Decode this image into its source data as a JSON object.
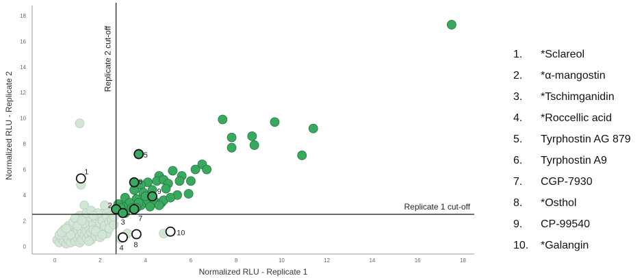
{
  "chart_data": {
    "type": "scatter",
    "xlabel": "Normalized RLU -  Replicate 1",
    "ylabel": "Normalized RLU - Replicate 2",
    "xlim": [
      -1,
      18.5
    ],
    "ylim": [
      -0.6,
      18.8
    ],
    "xticks": [
      0,
      2,
      4,
      6,
      8,
      10,
      12,
      14,
      16,
      18
    ],
    "yticks": [
      0,
      2,
      4,
      6,
      8,
      10,
      12,
      14,
      16,
      18
    ],
    "cutoff_x": 2.7,
    "cutoff_y": 2.5,
    "cutoff_x_label": "Replicate 2 cut-off",
    "cutoff_y_label": "Replicate 1 cut-off",
    "grid": false,
    "colors": {
      "hit": "#3aa85e",
      "hit_edge": "#1f7a3f",
      "inactive": "#d2e6d6",
      "inactive_edge": "#b6cfbb",
      "highlight_edge": "#111111"
    },
    "series": [
      {
        "values": [
          [
            1.1,
            9.6
          ],
          [
            1.15,
            4.8
          ],
          [
            1.3,
            3.2
          ],
          [
            0.1,
            0.5
          ],
          [
            0.2,
            0.3
          ],
          [
            0.3,
            0.6
          ],
          [
            0.4,
            0.4
          ],
          [
            0.5,
            0.8
          ],
          [
            0.5,
            0.2
          ],
          [
            0.6,
            1.0
          ],
          [
            0.6,
            0.5
          ],
          [
            0.7,
            0.3
          ],
          [
            0.7,
            1.2
          ],
          [
            0.8,
            0.7
          ],
          [
            0.8,
            1.5
          ],
          [
            0.9,
            0.4
          ],
          [
            0.9,
            1.0
          ],
          [
            1.0,
            0.6
          ],
          [
            1.0,
            1.3
          ],
          [
            1.0,
            1.9
          ],
          [
            1.1,
            0.8
          ],
          [
            1.1,
            0.3
          ],
          [
            1.2,
            1.1
          ],
          [
            1.2,
            1.6
          ],
          [
            1.2,
            0.5
          ],
          [
            1.3,
            0.9
          ],
          [
            1.3,
            2.1
          ],
          [
            1.4,
            1.2
          ],
          [
            1.4,
            0.6
          ],
          [
            1.5,
            1.5
          ],
          [
            1.5,
            0.9
          ],
          [
            1.5,
            2.0
          ],
          [
            1.6,
            1.1
          ],
          [
            1.6,
            0.5
          ],
          [
            1.7,
            1.7
          ],
          [
            1.7,
            1.3
          ],
          [
            1.8,
            0.8
          ],
          [
            1.8,
            2.2
          ],
          [
            1.9,
            1.4
          ],
          [
            1.9,
            1.0
          ],
          [
            2.0,
            1.8
          ],
          [
            2.0,
            2.5
          ],
          [
            2.0,
            0.7
          ],
          [
            2.1,
            1.2
          ],
          [
            2.1,
            2.0
          ],
          [
            2.2,
            1.6
          ],
          [
            2.2,
            2.7
          ],
          [
            2.3,
            1.0
          ],
          [
            2.3,
            2.3
          ],
          [
            2.4,
            1.9
          ],
          [
            2.4,
            1.4
          ],
          [
            2.5,
            2.1
          ],
          [
            2.5,
            2.6
          ],
          [
            2.6,
            1.7
          ],
          [
            0.2,
            0.9
          ],
          [
            0.4,
            1.3
          ],
          [
            0.6,
            1.6
          ],
          [
            0.8,
            1.9
          ],
          [
            1.1,
            2.4
          ],
          [
            1.4,
            2.6
          ],
          [
            1.6,
            2.8
          ],
          [
            0.9,
            2.2
          ],
          [
            0.3,
            1.1
          ],
          [
            1.3,
            1.8
          ],
          [
            0.7,
            0.9
          ],
          [
            1.8,
            1.2
          ],
          [
            2.1,
            0.9
          ],
          [
            1.5,
            0.4
          ],
          [
            0.5,
            1.4
          ],
          [
            1.9,
            2.6
          ],
          [
            2.3,
            3.0
          ],
          [
            1.7,
            2.4
          ],
          [
            2.6,
            2.3
          ],
          [
            1.0,
            1.6
          ],
          [
            1.2,
            2.0
          ],
          [
            3.2,
            1.0
          ],
          [
            4.8,
            1.0
          ],
          [
            2.9,
            0.6
          ],
          [
            2.6,
            2.9
          ],
          [
            2.2,
            3.2
          ]
        ]
      },
      {
        "values": [
          [
            17.5,
            17.3
          ],
          [
            7.4,
            9.9
          ],
          [
            9.7,
            9.7
          ],
          [
            11.4,
            9.2
          ],
          [
            8.7,
            8.6
          ],
          [
            7.8,
            8.5
          ],
          [
            8.8,
            7.9
          ],
          [
            7.8,
            7.7
          ],
          [
            10.9,
            7.1
          ],
          [
            6.5,
            6.4
          ],
          [
            6.2,
            6.0
          ],
          [
            6.7,
            6.0
          ],
          [
            5.2,
            5.9
          ],
          [
            4.6,
            5.5
          ],
          [
            5.6,
            5.5
          ],
          [
            4.1,
            5.0
          ],
          [
            4.5,
            5.1
          ],
          [
            4.8,
            5.2
          ],
          [
            5.0,
            4.9
          ],
          [
            5.5,
            5.1
          ],
          [
            6.0,
            5.1
          ],
          [
            3.8,
            4.8
          ],
          [
            4.9,
            4.5
          ],
          [
            3.5,
            4.4
          ],
          [
            4.3,
            4.4
          ],
          [
            3.9,
            4.2
          ],
          [
            5.9,
            4.1
          ],
          [
            5.4,
            4.0
          ],
          [
            3.1,
            3.8
          ],
          [
            3.6,
            3.7
          ],
          [
            4.0,
            3.6
          ],
          [
            3.3,
            3.4
          ],
          [
            4.4,
            3.5
          ],
          [
            4.7,
            3.4
          ],
          [
            3.0,
            3.1
          ],
          [
            3.4,
            3.0
          ],
          [
            3.8,
            3.2
          ],
          [
            4.2,
            3.1
          ],
          [
            2.8,
            3.3
          ],
          [
            3.1,
            2.6
          ],
          [
            3.7,
            3.4
          ],
          [
            4.8,
            3.6
          ],
          [
            5.1,
            3.8
          ],
          [
            4.6,
            3.2
          ],
          [
            3.6,
            3.0
          ],
          [
            4.0,
            3.9
          ],
          [
            2.9,
            3.0
          ]
        ]
      }
    ],
    "highlighted": [
      {
        "label": "1",
        "x": 1.15,
        "y": 5.3,
        "filled": false
      },
      {
        "label": "2",
        "x": 2.7,
        "y": 2.9,
        "filled": true
      },
      {
        "label": "3",
        "x": 3.0,
        "y": 2.6,
        "filled": true
      },
      {
        "label": "4",
        "x": 3.0,
        "y": 0.7,
        "filled": false
      },
      {
        "label": "5",
        "x": 3.7,
        "y": 7.2,
        "filled": true
      },
      {
        "label": "6",
        "x": 3.5,
        "y": 5.0,
        "filled": true
      },
      {
        "label": "7",
        "x": 3.5,
        "y": 2.9,
        "filled": true
      },
      {
        "label": "8",
        "x": 3.6,
        "y": 0.95,
        "filled": false
      },
      {
        "label": "9",
        "x": 4.3,
        "y": 3.9,
        "filled": true
      },
      {
        "label": "10",
        "x": 5.1,
        "y": 1.15,
        "filled": false
      }
    ],
    "legend_position": "right"
  },
  "legend": {
    "items": [
      {
        "num": "1.",
        "name": "*Sclareol"
      },
      {
        "num": "2.",
        "name": "*α-mangostin"
      },
      {
        "num": "3.",
        "name": "*Tschimganidin"
      },
      {
        "num": "4.",
        "name": "*Roccellic acid"
      },
      {
        "num": "5.",
        "name": "Tyrphostin AG 879"
      },
      {
        "num": "6.",
        "name": "Tyrphostin A9"
      },
      {
        "num": "7.",
        "name": "CGP-7930"
      },
      {
        "num": "8.",
        "name": "*Osthol"
      },
      {
        "num": "9.",
        "name": "CP-99540"
      },
      {
        "num": "10.",
        "name": "*Galangin"
      }
    ]
  }
}
